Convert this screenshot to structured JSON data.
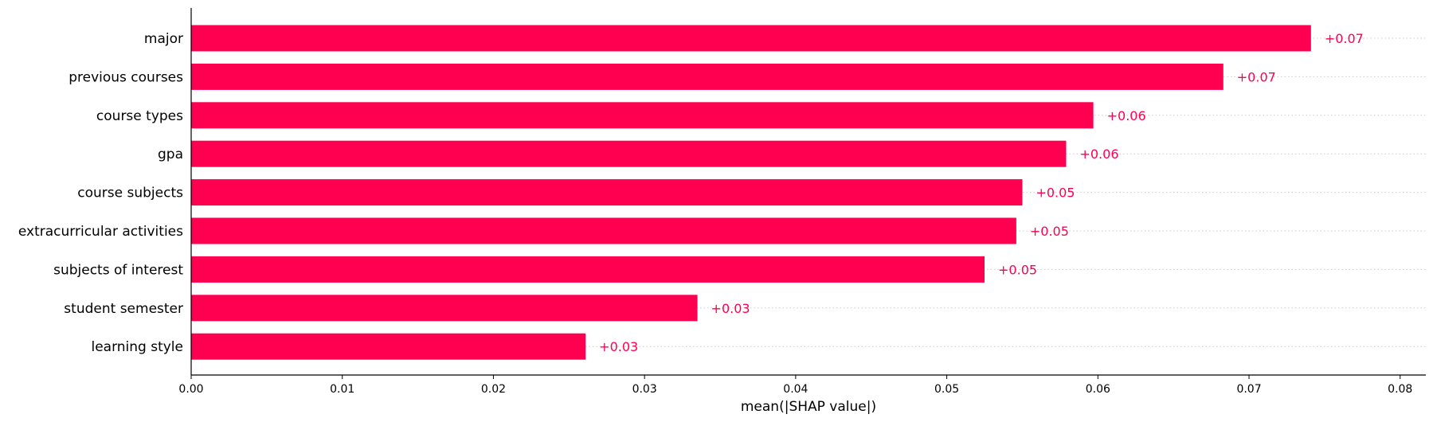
{
  "chart_data": {
    "type": "bar",
    "orientation": "horizontal",
    "categories": [
      "major",
      "previous courses",
      "course types",
      "gpa",
      "course subjects",
      "extracurricular activities",
      "subjects of interest",
      "student semester",
      "learning style"
    ],
    "values": [
      0.0741,
      0.0683,
      0.0597,
      0.0579,
      0.055,
      0.0546,
      0.0525,
      0.0335,
      0.0261
    ],
    "data_labels": [
      "+0.07",
      "+0.07",
      "+0.06",
      "+0.06",
      "+0.05",
      "+0.05",
      "+0.05",
      "+0.03",
      "+0.03"
    ],
    "xlabel": "mean(|SHAP value|)",
    "ylabel": "",
    "title": "",
    "xlim": [
      0,
      0.0817
    ],
    "xticks": [
      0.0,
      0.01,
      0.02,
      0.03,
      0.04,
      0.05,
      0.06,
      0.07,
      0.08
    ],
    "xtick_labels": [
      "0.00",
      "0.01",
      "0.02",
      "0.03",
      "0.04",
      "0.05",
      "0.06",
      "0.07",
      "0.08"
    ],
    "grid": "dotted horizontal guide lines",
    "bar_color": "#ff0051",
    "label_color": "#ff0051",
    "guide_color": "#cccccc"
  }
}
